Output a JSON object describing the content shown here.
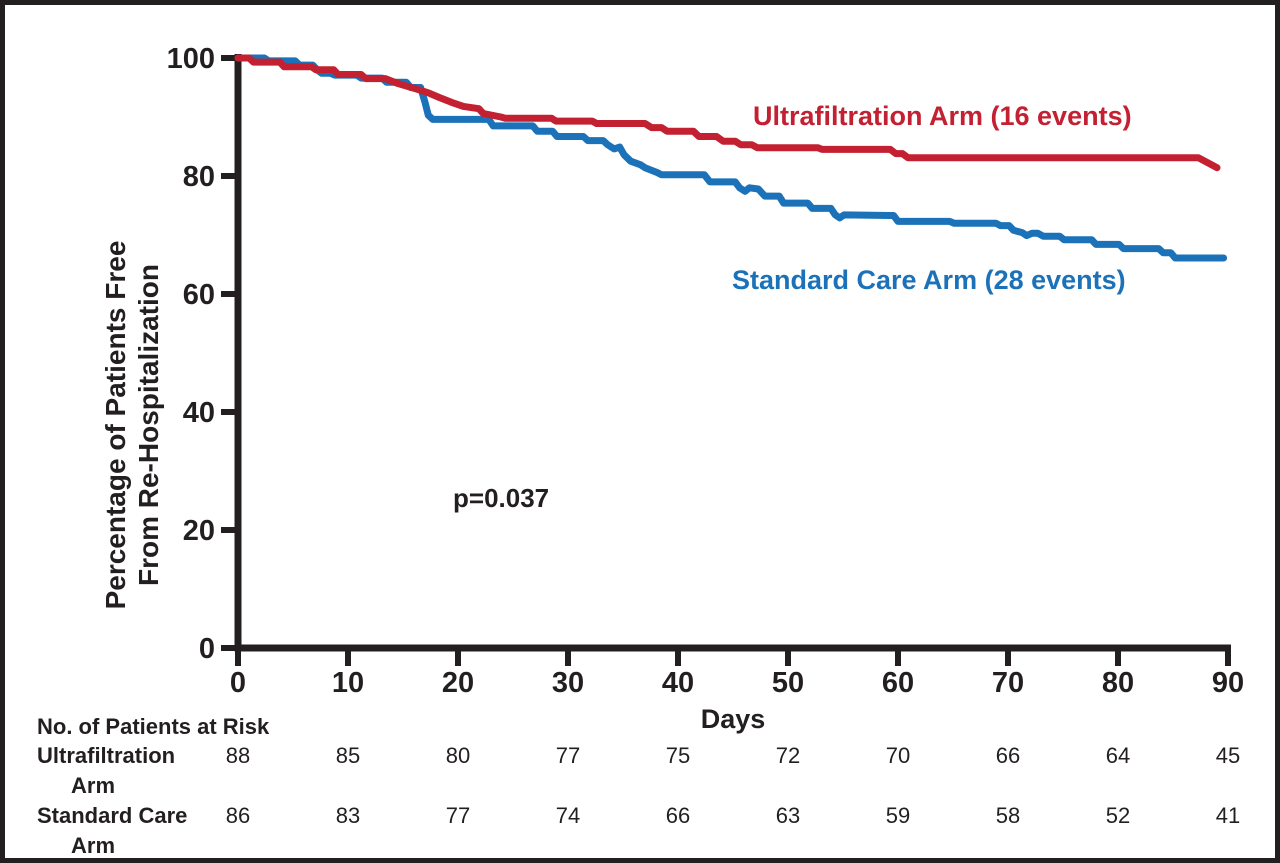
{
  "figure": {
    "p_value": "p=0.037",
    "x_axis_label": "Days",
    "risk_header": "No. of Patients at Risk"
  },
  "chart_data": {
    "type": "line",
    "subtype": "kaplan-meier-step",
    "title": "",
    "xlabel": "Days",
    "ylabel": "Percentage of Patients Free From Re-Hospitalization",
    "ylabel_line1": "Percentage of Patients Free",
    "ylabel_line2": "From Re-Hospitalization",
    "annotation": "p=0.037",
    "xlim": [
      0,
      90
    ],
    "ylim": [
      0,
      100
    ],
    "x_ticks": [
      0,
      10,
      20,
      30,
      40,
      50,
      60,
      70,
      80,
      90
    ],
    "y_ticks": [
      0,
      20,
      40,
      60,
      80,
      100
    ],
    "grid": false,
    "legend_position": "inline-labels",
    "series": [
      {
        "name": "Ultrafiltration Arm (16 events)",
        "events": 16,
        "color": "#c32031",
        "points": [
          [
            0,
            100
          ],
          [
            1,
            100
          ],
          [
            1.4,
            99.3
          ],
          [
            3.8,
            99.3
          ],
          [
            4.2,
            98.5
          ],
          [
            6.7,
            98.5
          ],
          [
            7.1,
            98
          ],
          [
            8.7,
            98
          ],
          [
            9.1,
            97.2
          ],
          [
            11.2,
            97.2
          ],
          [
            11.6,
            96.5
          ],
          [
            13.4,
            96.5
          ],
          [
            14.5,
            95.7
          ],
          [
            15.2,
            95.3
          ],
          [
            16.3,
            94.7
          ],
          [
            17.3,
            94.1
          ],
          [
            18.3,
            93.3
          ],
          [
            19.4,
            92.5
          ],
          [
            20.5,
            91.8
          ],
          [
            21.9,
            91.4
          ],
          [
            22.3,
            90.6
          ],
          [
            23.9,
            90
          ],
          [
            24.3,
            89.8
          ],
          [
            28.5,
            89.8
          ],
          [
            28.9,
            89.3
          ],
          [
            32.2,
            89.3
          ],
          [
            32.6,
            88.9
          ],
          [
            37,
            88.9
          ],
          [
            37.6,
            88.2
          ],
          [
            38.5,
            88.2
          ],
          [
            39,
            87.6
          ],
          [
            41.4,
            87.6
          ],
          [
            41.9,
            86.7
          ],
          [
            43.5,
            86.7
          ],
          [
            44.1,
            85.9
          ],
          [
            45.2,
            85.9
          ],
          [
            45.7,
            85.3
          ],
          [
            46.7,
            85.3
          ],
          [
            47.2,
            84.8
          ],
          [
            52.7,
            84.8
          ],
          [
            53.1,
            84.5
          ],
          [
            59.3,
            84.5
          ],
          [
            59.8,
            83.8
          ],
          [
            60.4,
            83.8
          ],
          [
            60.9,
            83.1
          ],
          [
            87.3,
            83.1
          ],
          [
            89,
            81.4
          ]
        ]
      },
      {
        "name": "Standard Care Arm (28 events)",
        "events": 28,
        "color": "#1c72b8",
        "points": [
          [
            0,
            100
          ],
          [
            2.4,
            100
          ],
          [
            2.8,
            99.5
          ],
          [
            5.2,
            99.5
          ],
          [
            5.6,
            98.8
          ],
          [
            6.8,
            98.8
          ],
          [
            7.2,
            98
          ],
          [
            7.6,
            97.4
          ],
          [
            8.4,
            97.4
          ],
          [
            8.8,
            97.1
          ],
          [
            10.8,
            97.1
          ],
          [
            11.2,
            96.6
          ],
          [
            13.1,
            96.6
          ],
          [
            13.5,
            95.9
          ],
          [
            15.3,
            95.9
          ],
          [
            15.7,
            95
          ],
          [
            16.6,
            95
          ],
          [
            17,
            92.5
          ],
          [
            17.3,
            90.3
          ],
          [
            17.7,
            89.6
          ],
          [
            22.8,
            89.6
          ],
          [
            23.2,
            88.5
          ],
          [
            26.8,
            88.5
          ],
          [
            27.2,
            87.6
          ],
          [
            28.6,
            87.6
          ],
          [
            29,
            86.7
          ],
          [
            31.4,
            86.7
          ],
          [
            31.8,
            86
          ],
          [
            33.2,
            86
          ],
          [
            33.6,
            85.3
          ],
          [
            34.2,
            84.6
          ],
          [
            34.7,
            84.9
          ],
          [
            35.1,
            83.6
          ],
          [
            35.7,
            82.5
          ],
          [
            36.6,
            81.9
          ],
          [
            37,
            81.4
          ],
          [
            38.1,
            80.6
          ],
          [
            38.5,
            80.2
          ],
          [
            42.4,
            80.2
          ],
          [
            42.9,
            79
          ],
          [
            45.2,
            79
          ],
          [
            45.6,
            78
          ],
          [
            46.1,
            77.4
          ],
          [
            46.5,
            78
          ],
          [
            47.3,
            77.8
          ],
          [
            47.9,
            76.6
          ],
          [
            49.2,
            76.6
          ],
          [
            49.6,
            75.4
          ],
          [
            51.8,
            75.4
          ],
          [
            52.2,
            74.5
          ],
          [
            53.9,
            74.5
          ],
          [
            54.3,
            73.4
          ],
          [
            54.7,
            72.9
          ],
          [
            55.1,
            73.4
          ],
          [
            59.6,
            73.3
          ],
          [
            60,
            72.3
          ],
          [
            64.7,
            72.3
          ],
          [
            65.1,
            72
          ],
          [
            68.9,
            72
          ],
          [
            69.3,
            71.6
          ],
          [
            70.1,
            71.6
          ],
          [
            70.5,
            70.8
          ],
          [
            71.3,
            70.4
          ],
          [
            71.7,
            69.9
          ],
          [
            72.2,
            70.3
          ],
          [
            72.7,
            70.3
          ],
          [
            73.2,
            69.8
          ],
          [
            74.7,
            69.8
          ],
          [
            75.1,
            69.2
          ],
          [
            77.6,
            69.2
          ],
          [
            78,
            68.4
          ],
          [
            80.1,
            68.4
          ],
          [
            80.5,
            67.7
          ],
          [
            83.7,
            67.7
          ],
          [
            84.1,
            67
          ],
          [
            84.8,
            67
          ],
          [
            85.2,
            66.1
          ],
          [
            89.6,
            66.1
          ]
        ]
      }
    ],
    "risk_table": {
      "header": "No. of Patients at Risk",
      "time_points": [
        0,
        10,
        20,
        30,
        40,
        50,
        60,
        70,
        80,
        90
      ],
      "rows": [
        {
          "label_line1": "Ultrafiltration",
          "label_line2": "Arm",
          "counts": [
            88,
            85,
            80,
            77,
            75,
            72,
            70,
            66,
            64,
            45
          ]
        },
        {
          "label_line1": "Standard Care",
          "label_line2": "Arm",
          "counts": [
            86,
            83,
            77,
            74,
            66,
            63,
            59,
            58,
            52,
            41
          ]
        }
      ]
    }
  },
  "colors": {
    "ultrafiltration_red": "#c32031",
    "standard_care_blue": "#1c72b8",
    "ink": "#231f20"
  }
}
